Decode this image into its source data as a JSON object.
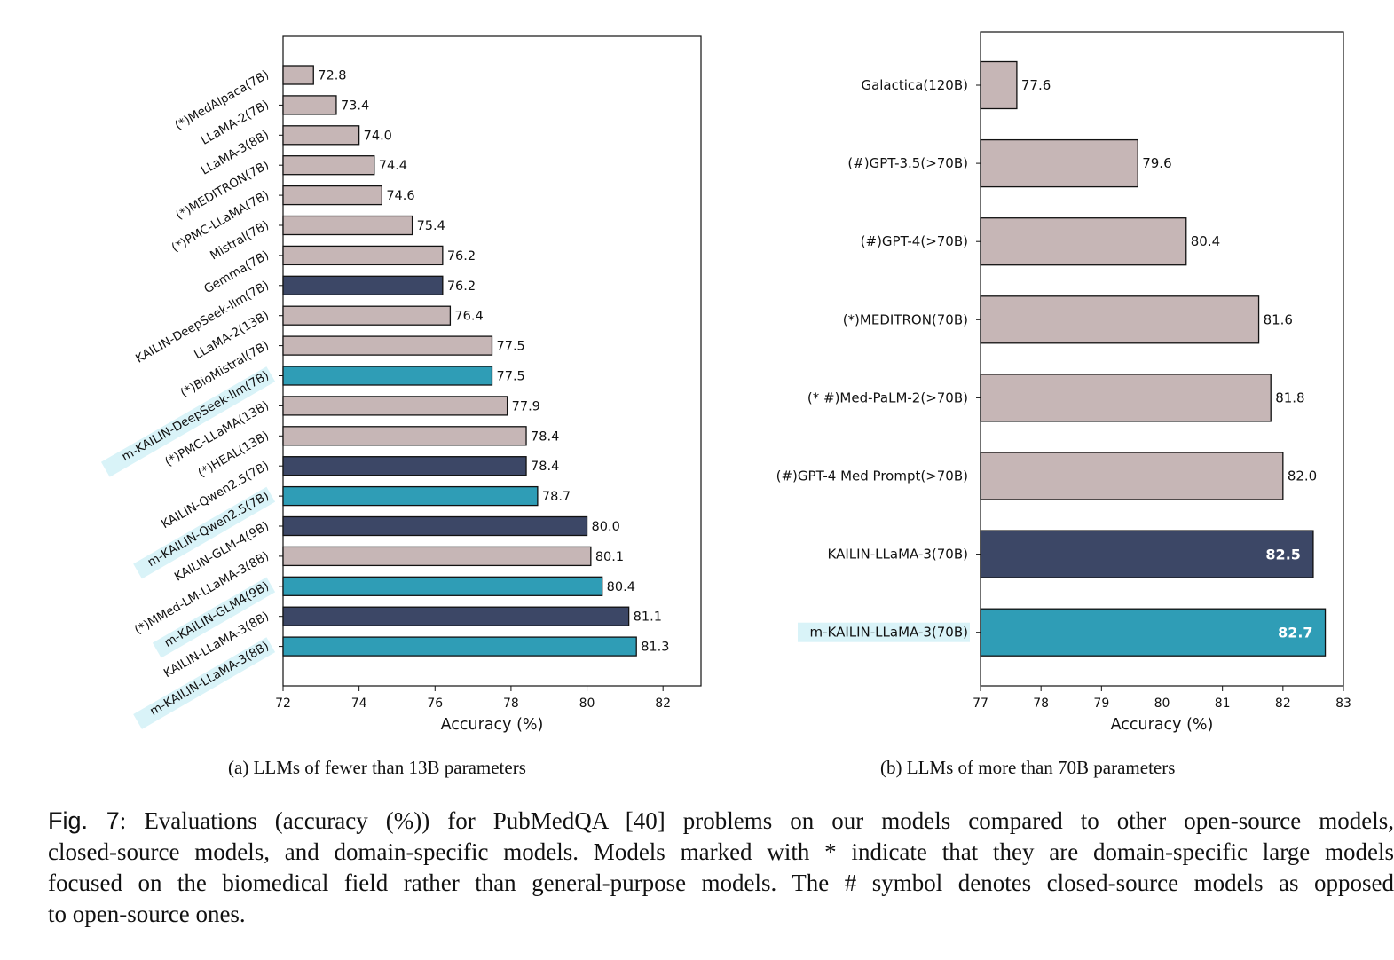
{
  "colors": {
    "other": "#c6b6b6",
    "kailin": "#3c4766",
    "m_kailin": "#2f9db6",
    "m_kailin_label_highlight": "#d9f3f8"
  },
  "chart_data": [
    {
      "type": "bar",
      "orientation": "horizontal",
      "subcaption": "(a) LLMs of fewer than 13B parameters",
      "xlabel": "Accuracy (%)",
      "xlim": [
        72,
        83
      ],
      "xticks": [
        72,
        74,
        76,
        78,
        80,
        82
      ],
      "grid": false,
      "categories": [
        "(*)MedAlpaca(7B)",
        "LLaMA-2(7B)",
        "LLaMA-3(8B)",
        "(*)MEDITRON(7B)",
        "(*)PMC-LLaMA(7B)",
        "Mistral(7B)",
        "Gemma(7B)",
        "KAILIN-DeepSeek-llm(7B)",
        "LLaMA-2(13B)",
        "(*)BioMistral(7B)",
        "m-KAILIN-DeepSeek-llm(7B)",
        "(*)PMC-LLaMA(13B)",
        "(*)HEAL(13B)",
        "KAILIN-Qwen2.5(7B)",
        "m-KAILIN-Qwen2.5(7B)",
        "KAILIN-GLM-4(9B)",
        "(*)MMed-LM-LLaMA-3(8B)",
        "m-KAILIN-GLM4(9B)",
        "KAILIN-LLaMA-3(8B)",
        "m-KAILIN-LLaMA-3(8B)"
      ],
      "values": [
        72.8,
        73.4,
        74.0,
        74.4,
        74.6,
        75.4,
        76.2,
        76.2,
        76.4,
        77.5,
        77.5,
        77.9,
        78.4,
        78.4,
        78.7,
        80.0,
        80.1,
        80.4,
        81.1,
        81.3
      ],
      "value_labels": [
        "72.8",
        "73.4",
        "74.0",
        "74.4",
        "74.6",
        "75.4",
        "76.2",
        "76.2",
        "76.4",
        "77.5",
        "77.5",
        "77.9",
        "78.4",
        "78.4",
        "78.7",
        "80.0",
        "80.1",
        "80.4",
        "81.1",
        "81.3"
      ],
      "groups": [
        "other",
        "other",
        "other",
        "other",
        "other",
        "other",
        "other",
        "kailin",
        "other",
        "other",
        "m_kailin",
        "other",
        "other",
        "kailin",
        "m_kailin",
        "kailin",
        "other",
        "m_kailin",
        "kailin",
        "m_kailin"
      ]
    },
    {
      "type": "bar",
      "orientation": "horizontal",
      "subcaption": "(b) LLMs of more than 70B parameters",
      "xlabel": "Accuracy (%)",
      "xlim": [
        77,
        83
      ],
      "xticks": [
        77,
        78,
        79,
        80,
        81,
        82,
        83
      ],
      "grid": false,
      "categories": [
        "Galactica(120B)",
        "(#)GPT-3.5(>70B)",
        "(#)GPT-4(>70B)",
        "(*)MEDITRON(70B)",
        "(* #)Med-PaLM-2(>70B)",
        "(#)GPT-4 Med Prompt(>70B)",
        "KAILIN-LLaMA-3(70B)",
        "m-KAILIN-LLaMA-3(70B)"
      ],
      "values": [
        77.6,
        79.6,
        80.4,
        81.6,
        81.8,
        82.0,
        82.5,
        82.7
      ],
      "value_labels": [
        "77.6",
        "79.6",
        "80.4",
        "81.6",
        "81.8",
        "82.0",
        "82.5",
        "82.7"
      ],
      "groups": [
        "other",
        "other",
        "other",
        "other",
        "other",
        "other",
        "kailin",
        "m_kailin"
      ]
    }
  ],
  "caption": {
    "fig_label": "Fig. 7",
    "lines": [
      ": Evaluations (accuracy (%)) for PubMedQA [40] problems on our models compared to other open-source models,",
      "closed-source models, and domain-specific models. Models marked with * indicate that they are domain-specific large models",
      "focused on the biomedical field rather than general-purpose models. The # symbol denotes closed-source models as opposed",
      "to open-source ones."
    ]
  }
}
